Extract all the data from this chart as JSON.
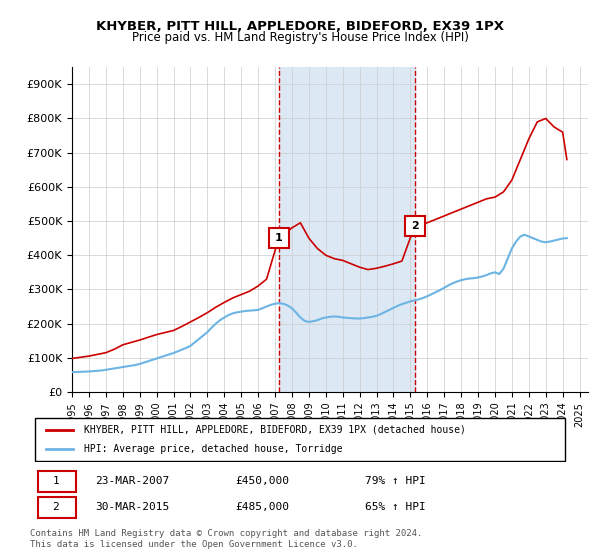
{
  "title": "KHYBER, PITT HILL, APPLEDORE, BIDEFORD, EX39 1PX",
  "subtitle": "Price paid vs. HM Land Registry's House Price Index (HPI)",
  "ylabel_ticks": [
    "£0",
    "£100K",
    "£200K",
    "£300K",
    "£400K",
    "£500K",
    "£600K",
    "£700K",
    "£800K",
    "£900K"
  ],
  "ytick_values": [
    0,
    100000,
    200000,
    300000,
    400000,
    500000,
    600000,
    700000,
    800000,
    900000
  ],
  "xlim_start": 1995.0,
  "xlim_end": 2025.5,
  "ylim": [
    0,
    950000
  ],
  "hpi_line_color": "#6cb4e4",
  "price_line_color": "#cc0000",
  "shade_color": "#dce9f5",
  "vline_color": "#cc0000",
  "marker1_x": 2007.22,
  "marker1_y": 450000,
  "marker2_x": 2015.25,
  "marker2_y": 485000,
  "legend_label1": "KHYBER, PITT HILL, APPLEDORE, BIDEFORD, EX39 1PX (detached house)",
  "legend_label2": "HPI: Average price, detached house, Torridge",
  "table_row1": [
    "1",
    "23-MAR-2007",
    "£450,000",
    "79% ↑ HPI"
  ],
  "table_row2": [
    "2",
    "30-MAR-2015",
    "£485,000",
    "65% ↑ HPI"
  ],
  "footnote": "Contains HM Land Registry data © Crown copyright and database right 2024.\nThis data is licensed under the Open Government Licence v3.0.",
  "hpi_data_x": [
    1995,
    1995.25,
    1995.5,
    1995.75,
    1996,
    1996.25,
    1996.5,
    1996.75,
    1997,
    1997.25,
    1997.5,
    1997.75,
    1998,
    1998.25,
    1998.5,
    1998.75,
    1999,
    1999.25,
    1999.5,
    1999.75,
    2000,
    2000.25,
    2000.5,
    2000.75,
    2001,
    2001.25,
    2001.5,
    2001.75,
    2002,
    2002.25,
    2002.5,
    2002.75,
    2003,
    2003.25,
    2003.5,
    2003.75,
    2004,
    2004.25,
    2004.5,
    2004.75,
    2005,
    2005.25,
    2005.5,
    2005.75,
    2006,
    2006.25,
    2006.5,
    2006.75,
    2007,
    2007.25,
    2007.5,
    2007.75,
    2008,
    2008.25,
    2008.5,
    2008.75,
    2009,
    2009.25,
    2009.5,
    2009.75,
    2010,
    2010.25,
    2010.5,
    2010.75,
    2011,
    2011.25,
    2011.5,
    2011.75,
    2012,
    2012.25,
    2012.5,
    2012.75,
    2013,
    2013.25,
    2013.5,
    2013.75,
    2014,
    2014.25,
    2014.5,
    2014.75,
    2015,
    2015.25,
    2015.5,
    2015.75,
    2016,
    2016.25,
    2016.5,
    2016.75,
    2017,
    2017.25,
    2017.5,
    2017.75,
    2018,
    2018.25,
    2018.5,
    2018.75,
    2019,
    2019.25,
    2019.5,
    2019.75,
    2020,
    2020.25,
    2020.5,
    2020.75,
    2021,
    2021.25,
    2021.5,
    2021.75,
    2022,
    2022.25,
    2022.5,
    2022.75,
    2023,
    2023.25,
    2023.5,
    2023.75,
    2024,
    2024.25
  ],
  "hpi_data_y": [
    58000,
    58500,
    59000,
    59500,
    60000,
    61000,
    62000,
    63000,
    65000,
    67000,
    69000,
    71000,
    73000,
    75000,
    77000,
    79000,
    82000,
    86000,
    90000,
    94000,
    98000,
    102000,
    106000,
    110000,
    114000,
    119000,
    124000,
    129000,
    135000,
    145000,
    155000,
    165000,
    175000,
    188000,
    200000,
    210000,
    218000,
    225000,
    230000,
    233000,
    235000,
    237000,
    238000,
    239000,
    240000,
    245000,
    250000,
    255000,
    258000,
    260000,
    258000,
    253000,
    245000,
    232000,
    218000,
    208000,
    205000,
    207000,
    210000,
    215000,
    218000,
    220000,
    221000,
    220000,
    218000,
    217000,
    216000,
    215000,
    215000,
    216000,
    218000,
    220000,
    223000,
    228000,
    234000,
    240000,
    246000,
    252000,
    257000,
    261000,
    265000,
    268000,
    271000,
    275000,
    280000,
    286000,
    292000,
    298000,
    305000,
    312000,
    318000,
    323000,
    327000,
    330000,
    332000,
    333000,
    335000,
    338000,
    342000,
    347000,
    350000,
    345000,
    360000,
    390000,
    420000,
    440000,
    455000,
    460000,
    455000,
    450000,
    445000,
    440000,
    438000,
    440000,
    443000,
    446000,
    449000,
    450000
  ],
  "price_data_x": [
    1995,
    1996,
    1997,
    1997.5,
    1998,
    1999,
    2000,
    2001,
    2001.5,
    2002,
    2002.5,
    2003,
    2003.5,
    2004,
    2004.5,
    2005,
    2005.5,
    2006,
    2006.5,
    2007.22,
    2008,
    2008.5,
    2009,
    2009.5,
    2010,
    2010.5,
    2011,
    2011.5,
    2012,
    2012.5,
    2013,
    2013.5,
    2014,
    2014.5,
    2015.25,
    2016,
    2016.5,
    2017,
    2017.5,
    2018,
    2018.5,
    2019,
    2019.5,
    2020,
    2020.5,
    2021,
    2021.5,
    2022,
    2022.5,
    2023,
    2023.5,
    2024,
    2024.25
  ],
  "price_data_y": [
    98000,
    105000,
    115000,
    125000,
    138000,
    152000,
    168000,
    180000,
    192000,
    205000,
    218000,
    232000,
    248000,
    262000,
    275000,
    285000,
    295000,
    310000,
    330000,
    450000,
    480000,
    495000,
    450000,
    420000,
    400000,
    390000,
    385000,
    375000,
    365000,
    358000,
    362000,
    368000,
    375000,
    383000,
    485000,
    495000,
    505000,
    515000,
    525000,
    535000,
    545000,
    555000,
    565000,
    570000,
    585000,
    620000,
    680000,
    740000,
    790000,
    800000,
    775000,
    760000,
    680000
  ]
}
